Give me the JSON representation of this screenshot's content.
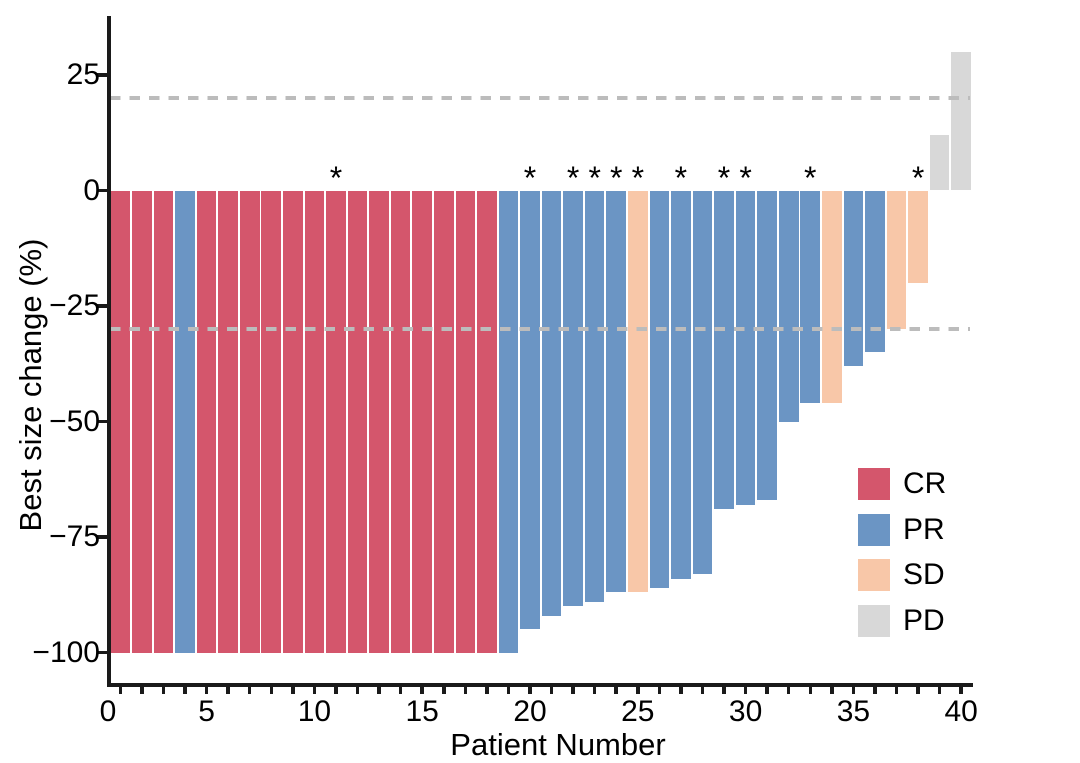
{
  "figure": {
    "background": "#ffffff",
    "text_color": "#000000",
    "axis_color": "#1a1a1a"
  },
  "y_axis": {
    "title": "Best size change (%)",
    "ticks": [
      {
        "value": 25,
        "label": "25"
      },
      {
        "value": 0,
        "label": "0"
      },
      {
        "value": -25,
        "label": "−25"
      },
      {
        "value": -50,
        "label": "−50"
      },
      {
        "value": -75,
        "label": "−75"
      },
      {
        "value": -100,
        "label": "−100"
      }
    ]
  },
  "x_axis": {
    "title": "Patient Number",
    "labeled_ticks": [
      0,
      5,
      10,
      15,
      20,
      25,
      30,
      35,
      40
    ]
  },
  "reference_lines": {
    "color": "#bcbcbc",
    "style": "dashed",
    "values": [
      20,
      -30
    ]
  },
  "annotation": {
    "symbol": "*"
  },
  "legend": {
    "items": [
      {
        "label": "CR",
        "color": "#d4566c"
      },
      {
        "label": "PR",
        "color": "#6b95c4"
      },
      {
        "label": "SD",
        "color": "#f8c7a8"
      },
      {
        "label": "PD",
        "color": "#d8d8d8"
      }
    ]
  },
  "chart_data": {
    "type": "bar",
    "title": "",
    "xlabel": "Patient Number",
    "ylabel": "Best size change (%)",
    "xlim": [
      0,
      40.5
    ],
    "ylim": [
      -107,
      37
    ],
    "grid": false,
    "legend_position": "right-middle",
    "reference_lines": [
      20,
      -30
    ],
    "categories": [
      1,
      2,
      3,
      4,
      5,
      6,
      7,
      8,
      9,
      10,
      11,
      12,
      13,
      14,
      15,
      16,
      17,
      18,
      19,
      20,
      21,
      22,
      23,
      24,
      25,
      26,
      27,
      28,
      29,
      30,
      31,
      32,
      33,
      34,
      35,
      36,
      37,
      38,
      39,
      40
    ],
    "series": [
      {
        "name": "Best size change (%)",
        "values": [
          -100,
          -100,
          -100,
          -100,
          -100,
          -100,
          -100,
          -100,
          -100,
          -100,
          -100,
          -100,
          -100,
          -100,
          -100,
          -100,
          -100,
          -100,
          -100,
          -95,
          -92,
          -90,
          -89,
          -87,
          -87,
          -86,
          -84,
          -83,
          -69,
          -68,
          -67,
          -50,
          -46,
          -46,
          -38,
          -35,
          -30,
          -20,
          12,
          30
        ]
      }
    ],
    "patients": [
      {
        "patient": 1,
        "value": -100,
        "response": "CR",
        "star": false
      },
      {
        "patient": 2,
        "value": -100,
        "response": "CR",
        "star": false
      },
      {
        "patient": 3,
        "value": -100,
        "response": "CR",
        "star": false
      },
      {
        "patient": 4,
        "value": -100,
        "response": "PR",
        "star": false
      },
      {
        "patient": 5,
        "value": -100,
        "response": "CR",
        "star": false
      },
      {
        "patient": 6,
        "value": -100,
        "response": "CR",
        "star": false
      },
      {
        "patient": 7,
        "value": -100,
        "response": "CR",
        "star": false
      },
      {
        "patient": 8,
        "value": -100,
        "response": "CR",
        "star": false
      },
      {
        "patient": 9,
        "value": -100,
        "response": "CR",
        "star": false
      },
      {
        "patient": 10,
        "value": -100,
        "response": "CR",
        "star": false
      },
      {
        "patient": 11,
        "value": -100,
        "response": "CR",
        "star": true
      },
      {
        "patient": 12,
        "value": -100,
        "response": "CR",
        "star": false
      },
      {
        "patient": 13,
        "value": -100,
        "response": "CR",
        "star": false
      },
      {
        "patient": 14,
        "value": -100,
        "response": "CR",
        "star": false
      },
      {
        "patient": 15,
        "value": -100,
        "response": "CR",
        "star": false
      },
      {
        "patient": 16,
        "value": -100,
        "response": "CR",
        "star": false
      },
      {
        "patient": 17,
        "value": -100,
        "response": "CR",
        "star": false
      },
      {
        "patient": 18,
        "value": -100,
        "response": "CR",
        "star": false
      },
      {
        "patient": 19,
        "value": -100,
        "response": "PR",
        "star": false
      },
      {
        "patient": 20,
        "value": -95,
        "response": "PR",
        "star": true
      },
      {
        "patient": 21,
        "value": -92,
        "response": "PR",
        "star": false
      },
      {
        "patient": 22,
        "value": -90,
        "response": "PR",
        "star": true
      },
      {
        "patient": 23,
        "value": -89,
        "response": "PR",
        "star": true
      },
      {
        "patient": 24,
        "value": -87,
        "response": "PR",
        "star": true
      },
      {
        "patient": 25,
        "value": -87,
        "response": "SD",
        "star": true
      },
      {
        "patient": 26,
        "value": -86,
        "response": "PR",
        "star": false
      },
      {
        "patient": 27,
        "value": -84,
        "response": "PR",
        "star": true
      },
      {
        "patient": 28,
        "value": -83,
        "response": "PR",
        "star": false
      },
      {
        "patient": 29,
        "value": -69,
        "response": "PR",
        "star": true
      },
      {
        "patient": 30,
        "value": -68,
        "response": "PR",
        "star": true
      },
      {
        "patient": 31,
        "value": -67,
        "response": "PR",
        "star": false
      },
      {
        "patient": 32,
        "value": -50,
        "response": "PR",
        "star": false
      },
      {
        "patient": 33,
        "value": -46,
        "response": "PR",
        "star": true
      },
      {
        "patient": 34,
        "value": -46,
        "response": "SD",
        "star": false
      },
      {
        "patient": 35,
        "value": -38,
        "response": "PR",
        "star": false
      },
      {
        "patient": 36,
        "value": -35,
        "response": "PR",
        "star": false
      },
      {
        "patient": 37,
        "value": -30,
        "response": "SD",
        "star": false
      },
      {
        "patient": 38,
        "value": -20,
        "response": "SD",
        "star": true
      },
      {
        "patient": 39,
        "value": 12,
        "response": "PD",
        "star": false
      },
      {
        "patient": 40,
        "value": 30,
        "response": "PD",
        "star": false
      }
    ]
  }
}
